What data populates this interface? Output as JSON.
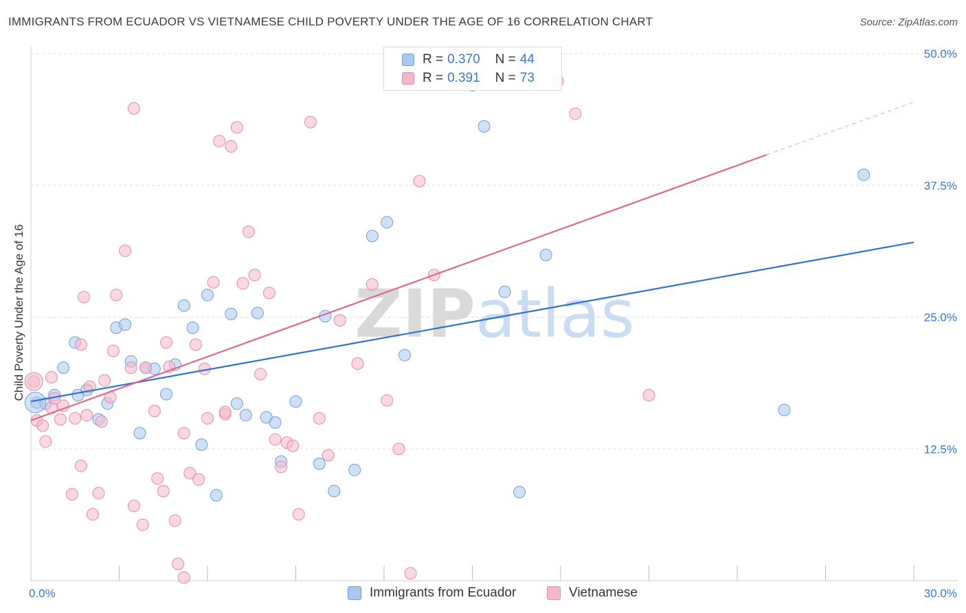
{
  "title": "IMMIGRANTS FROM ECUADOR VS VIETNAMESE CHILD POVERTY UNDER THE AGE OF 16 CORRELATION CHART",
  "source": "Source: ZipAtlas.com",
  "colors": {
    "blue_fill": "#a9c8f0",
    "blue_stroke": "#6f9fd8",
    "blue_line": "#2f6fcf",
    "pink_fill": "#f5b8cb",
    "pink_stroke": "#e58aa8",
    "pink_line": "#e0668f",
    "tick_label": "#3b78c9",
    "grid": "#dedede"
  },
  "legend": {
    "rows": [
      {
        "r_label": "R =",
        "r_value": "0.370",
        "n_label": "N =",
        "n_value": "44"
      },
      {
        "r_label": "R =",
        "r_value": "0.391",
        "n_label": "N =",
        "n_value": "73"
      }
    ]
  },
  "bottom_legend": {
    "series1": "Immigrants from Ecuador",
    "series2": "Vietnamese"
  },
  "chart_data": {
    "type": "scatter",
    "title": "IMMIGRANTS FROM ECUADOR VS VIETNAMESE CHILD POVERTY UNDER THE AGE OF 16 CORRELATION CHART",
    "xlabel": "",
    "ylabel": "Child Poverty Under the Age of 16",
    "xlim": [
      0,
      30
    ],
    "ylim": [
      0,
      50
    ],
    "x_tick_labels": [
      "0.0%",
      "30.0%"
    ],
    "y_ticks": [
      12.5,
      25.0,
      37.5,
      50.0
    ],
    "y_tick_labels": [
      "12.5%",
      "25.0%",
      "37.5%",
      "50.0%"
    ],
    "grid": true,
    "watermark": "ZIPatlas",
    "series": [
      {
        "name": "Immigrants from Ecuador",
        "R": 0.37,
        "N": 44,
        "trend": {
          "x": [
            0,
            30
          ],
          "y": [
            17.0,
            32.1
          ]
        },
        "points": [
          [
            0.2,
            16.9
          ],
          [
            0.5,
            16.8
          ],
          [
            0.8,
            17.6
          ],
          [
            1.1,
            20.2
          ],
          [
            1.5,
            22.6
          ],
          [
            1.6,
            17.6
          ],
          [
            1.9,
            18.1
          ],
          [
            2.3,
            15.3
          ],
          [
            2.6,
            16.8
          ],
          [
            2.9,
            24.0
          ],
          [
            3.2,
            24.3
          ],
          [
            3.4,
            20.8
          ],
          [
            3.7,
            14.0
          ],
          [
            3.9,
            20.2
          ],
          [
            4.2,
            20.1
          ],
          [
            4.6,
            17.7
          ],
          [
            4.9,
            20.5
          ],
          [
            5.2,
            26.1
          ],
          [
            5.5,
            24.0
          ],
          [
            5.8,
            12.9
          ],
          [
            6.0,
            27.1
          ],
          [
            6.3,
            8.1
          ],
          [
            6.8,
            25.3
          ],
          [
            7.0,
            16.8
          ],
          [
            7.3,
            15.7
          ],
          [
            7.7,
            25.4
          ],
          [
            8.0,
            15.5
          ],
          [
            8.3,
            15.0
          ],
          [
            8.5,
            11.3
          ],
          [
            9.0,
            17.0
          ],
          [
            9.8,
            11.1
          ],
          [
            10.0,
            25.1
          ],
          [
            10.3,
            8.5
          ],
          [
            11.0,
            10.5
          ],
          [
            11.6,
            32.7
          ],
          [
            12.1,
            34.0
          ],
          [
            12.7,
            21.4
          ],
          [
            15.0,
            47.0
          ],
          [
            15.4,
            43.1
          ],
          [
            16.1,
            27.4
          ],
          [
            16.6,
            8.4
          ],
          [
            17.5,
            30.9
          ],
          [
            25.6,
            16.2
          ],
          [
            28.3,
            38.5
          ]
        ]
      },
      {
        "name": "Vietnamese",
        "R": 0.391,
        "N": 73,
        "trend": {
          "x": [
            0,
            25.0
          ],
          "y": [
            15.2,
            40.4
          ]
        },
        "trend_dashed": {
          "x": [
            25.0,
            30
          ],
          "y": [
            40.4,
            45.4
          ]
        },
        "points": [
          [
            0.1,
            18.9
          ],
          [
            0.2,
            15.2
          ],
          [
            0.4,
            14.7
          ],
          [
            0.5,
            13.2
          ],
          [
            0.7,
            16.4
          ],
          [
            0.7,
            19.3
          ],
          [
            0.8,
            17.3
          ],
          [
            1.0,
            15.3
          ],
          [
            1.1,
            16.6
          ],
          [
            1.4,
            8.2
          ],
          [
            1.5,
            15.4
          ],
          [
            1.7,
            10.9
          ],
          [
            1.7,
            22.4
          ],
          [
            1.8,
            26.9
          ],
          [
            2.0,
            18.4
          ],
          [
            2.1,
            6.3
          ],
          [
            2.3,
            8.3
          ],
          [
            2.5,
            19.0
          ],
          [
            2.7,
            17.4
          ],
          [
            2.9,
            27.1
          ],
          [
            3.2,
            31.3
          ],
          [
            3.4,
            20.2
          ],
          [
            3.5,
            7.1
          ],
          [
            3.8,
            5.3
          ],
          [
            3.9,
            20.2
          ],
          [
            4.2,
            16.1
          ],
          [
            4.3,
            9.7
          ],
          [
            4.5,
            8.5
          ],
          [
            4.6,
            22.6
          ],
          [
            4.9,
            5.7
          ],
          [
            5.0,
            1.6
          ],
          [
            5.2,
            14.0
          ],
          [
            5.4,
            10.2
          ],
          [
            5.7,
            9.6
          ],
          [
            5.9,
            20.1
          ],
          [
            6.0,
            15.4
          ],
          [
            6.2,
            28.3
          ],
          [
            6.4,
            41.7
          ],
          [
            6.6,
            15.8
          ],
          [
            6.8,
            41.2
          ],
          [
            7.0,
            43.0
          ],
          [
            7.2,
            28.2
          ],
          [
            7.4,
            33.1
          ],
          [
            7.6,
            29.0
          ],
          [
            7.8,
            19.6
          ],
          [
            8.1,
            27.3
          ],
          [
            8.3,
            13.4
          ],
          [
            8.5,
            10.8
          ],
          [
            8.7,
            13.1
          ],
          [
            8.9,
            12.8
          ],
          [
            9.1,
            6.3
          ],
          [
            9.5,
            43.5
          ],
          [
            9.8,
            15.4
          ],
          [
            10.1,
            11.9
          ],
          [
            10.5,
            24.7
          ],
          [
            11.1,
            20.6
          ],
          [
            11.6,
            28.1
          ],
          [
            12.1,
            17.1
          ],
          [
            12.5,
            12.5
          ],
          [
            12.9,
            0.7
          ],
          [
            13.2,
            37.9
          ],
          [
            13.7,
            29.0
          ],
          [
            3.5,
            44.8
          ],
          [
            17.9,
            47.4
          ],
          [
            18.5,
            44.3
          ],
          [
            21.0,
            17.6
          ],
          [
            5.2,
            0.3
          ],
          [
            4.7,
            20.3
          ],
          [
            2.8,
            21.8
          ],
          [
            1.9,
            15.7
          ],
          [
            2.4,
            15.1
          ],
          [
            6.6,
            16.0
          ],
          [
            5.6,
            22.4
          ]
        ]
      }
    ]
  }
}
